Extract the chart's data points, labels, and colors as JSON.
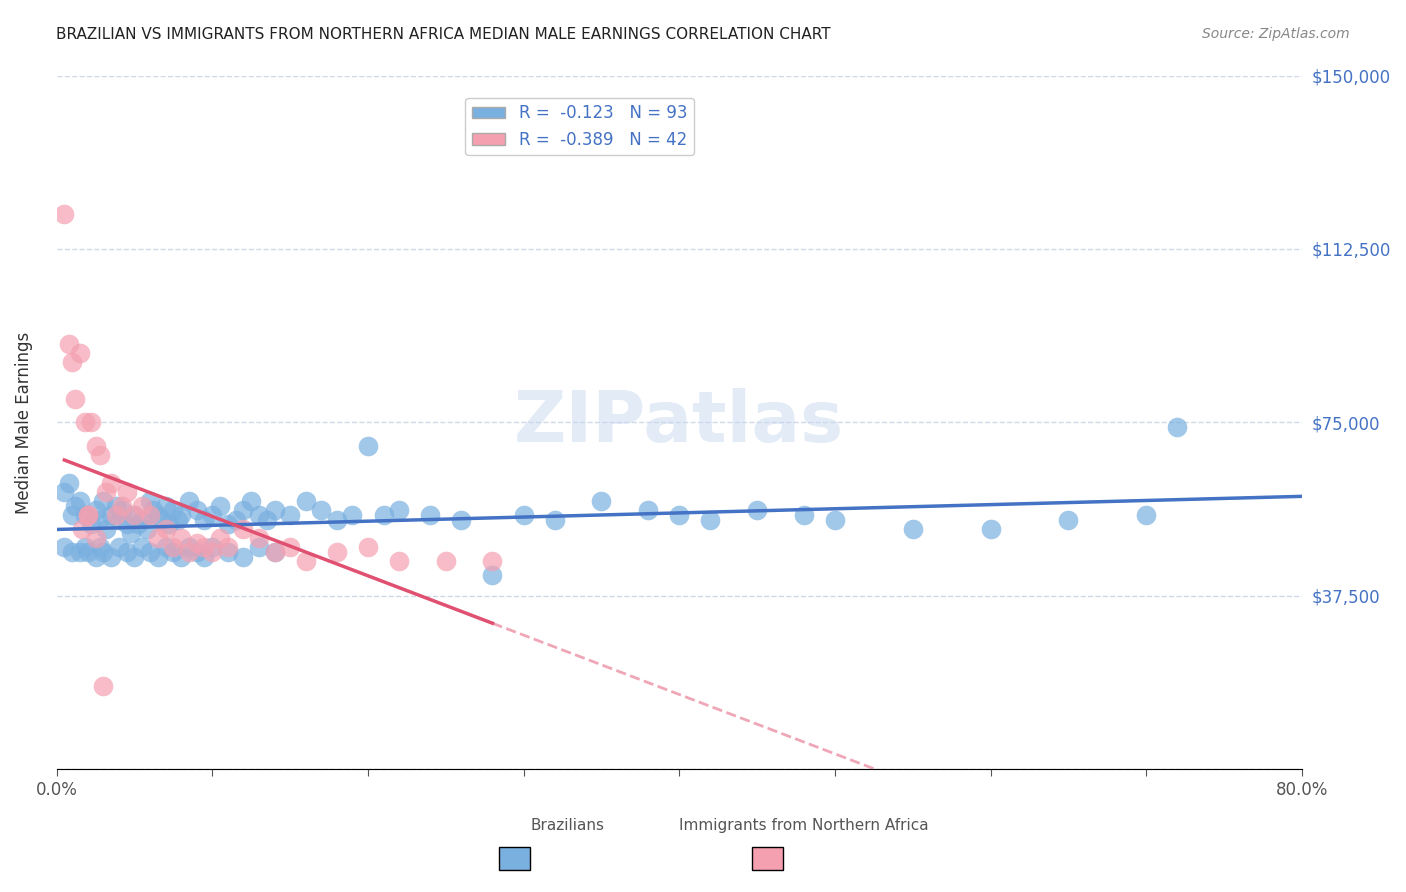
{
  "title": "BRAZILIAN VS IMMIGRANTS FROM NORTHERN AFRICA MEDIAN MALE EARNINGS CORRELATION CHART",
  "source": "Source: ZipAtlas.com",
  "xlabel_bottom": "",
  "ylabel": "Median Male Earnings",
  "x_min": 0.0,
  "x_max": 0.8,
  "y_min": 0,
  "y_max": 150000,
  "y_ticks": [
    0,
    37500,
    75000,
    112500,
    150000
  ],
  "y_tick_labels": [
    "",
    "$37,500",
    "$75,000",
    "$112,500",
    "$150,000"
  ],
  "x_ticks": [
    0.0,
    0.1,
    0.2,
    0.3,
    0.4,
    0.5,
    0.6,
    0.7,
    0.8
  ],
  "x_tick_labels": [
    "0.0%",
    "",
    "",
    "",
    "",
    "",
    "",
    "",
    "80.0%"
  ],
  "legend_r1": "R =  -0.123   N = 93",
  "legend_r2": "R =  -0.389   N = 42",
  "color_blue": "#7ab0e0",
  "color_pink": "#f4a0b0",
  "color_blue_line": "#4472c4",
  "color_pink_line": "#e05070",
  "color_axis_labels": "#4472c4",
  "background_color": "#ffffff",
  "grid_color": "#d0d8e8",
  "watermark": "ZIPatlas",
  "brazilian_x": [
    0.01,
    0.015,
    0.005,
    0.008,
    0.012,
    0.018,
    0.022,
    0.025,
    0.028,
    0.03,
    0.032,
    0.035,
    0.038,
    0.04,
    0.042,
    0.045,
    0.048,
    0.05,
    0.052,
    0.055,
    0.058,
    0.06,
    0.062,
    0.065,
    0.068,
    0.07,
    0.072,
    0.075,
    0.078,
    0.08,
    0.085,
    0.09,
    0.095,
    0.1,
    0.105,
    0.11,
    0.115,
    0.12,
    0.125,
    0.13,
    0.135,
    0.14,
    0.15,
    0.16,
    0.17,
    0.18,
    0.19,
    0.2,
    0.21,
    0.22,
    0.24,
    0.26,
    0.28,
    0.3,
    0.32,
    0.35,
    0.38,
    0.4,
    0.42,
    0.45,
    0.48,
    0.5,
    0.55,
    0.6,
    0.65,
    0.7,
    0.005,
    0.01,
    0.015,
    0.018,
    0.02,
    0.025,
    0.028,
    0.03,
    0.035,
    0.04,
    0.045,
    0.05,
    0.055,
    0.06,
    0.065,
    0.07,
    0.075,
    0.08,
    0.085,
    0.09,
    0.095,
    0.1,
    0.11,
    0.12,
    0.13,
    0.14,
    0.72
  ],
  "brazilian_y": [
    55000,
    58000,
    60000,
    62000,
    57000,
    55000,
    53000,
    56000,
    54000,
    58000,
    52000,
    55000,
    57000,
    54000,
    56000,
    53000,
    51000,
    55000,
    53000,
    54000,
    52000,
    58000,
    56000,
    55000,
    54000,
    57000,
    53000,
    56000,
    54000,
    55000,
    58000,
    56000,
    54000,
    55000,
    57000,
    53000,
    54000,
    56000,
    58000,
    55000,
    54000,
    56000,
    55000,
    58000,
    56000,
    54000,
    55000,
    70000,
    55000,
    56000,
    55000,
    54000,
    42000,
    55000,
    54000,
    58000,
    56000,
    55000,
    54000,
    56000,
    55000,
    54000,
    52000,
    52000,
    54000,
    55000,
    48000,
    47000,
    47000,
    48000,
    47000,
    46000,
    48000,
    47000,
    46000,
    48000,
    47000,
    46000,
    48000,
    47000,
    46000,
    48000,
    47000,
    46000,
    48000,
    47000,
    46000,
    48000,
    47000,
    46000,
    48000,
    47000,
    74000
  ],
  "northern_x": [
    0.01,
    0.015,
    0.018,
    0.022,
    0.025,
    0.028,
    0.032,
    0.035,
    0.038,
    0.042,
    0.045,
    0.05,
    0.055,
    0.06,
    0.065,
    0.07,
    0.075,
    0.08,
    0.085,
    0.09,
    0.095,
    0.1,
    0.105,
    0.11,
    0.12,
    0.13,
    0.14,
    0.15,
    0.16,
    0.18,
    0.2,
    0.22,
    0.25,
    0.28,
    0.005,
    0.008,
    0.012,
    0.016,
    0.02,
    0.025,
    0.03,
    0.02
  ],
  "northern_y": [
    88000,
    90000,
    75000,
    75000,
    70000,
    68000,
    60000,
    62000,
    55000,
    57000,
    60000,
    55000,
    57000,
    55000,
    50000,
    52000,
    48000,
    50000,
    47000,
    49000,
    48000,
    47000,
    50000,
    48000,
    52000,
    50000,
    47000,
    48000,
    45000,
    47000,
    48000,
    45000,
    45000,
    45000,
    120000,
    92000,
    80000,
    52000,
    55000,
    50000,
    18000,
    55000
  ]
}
